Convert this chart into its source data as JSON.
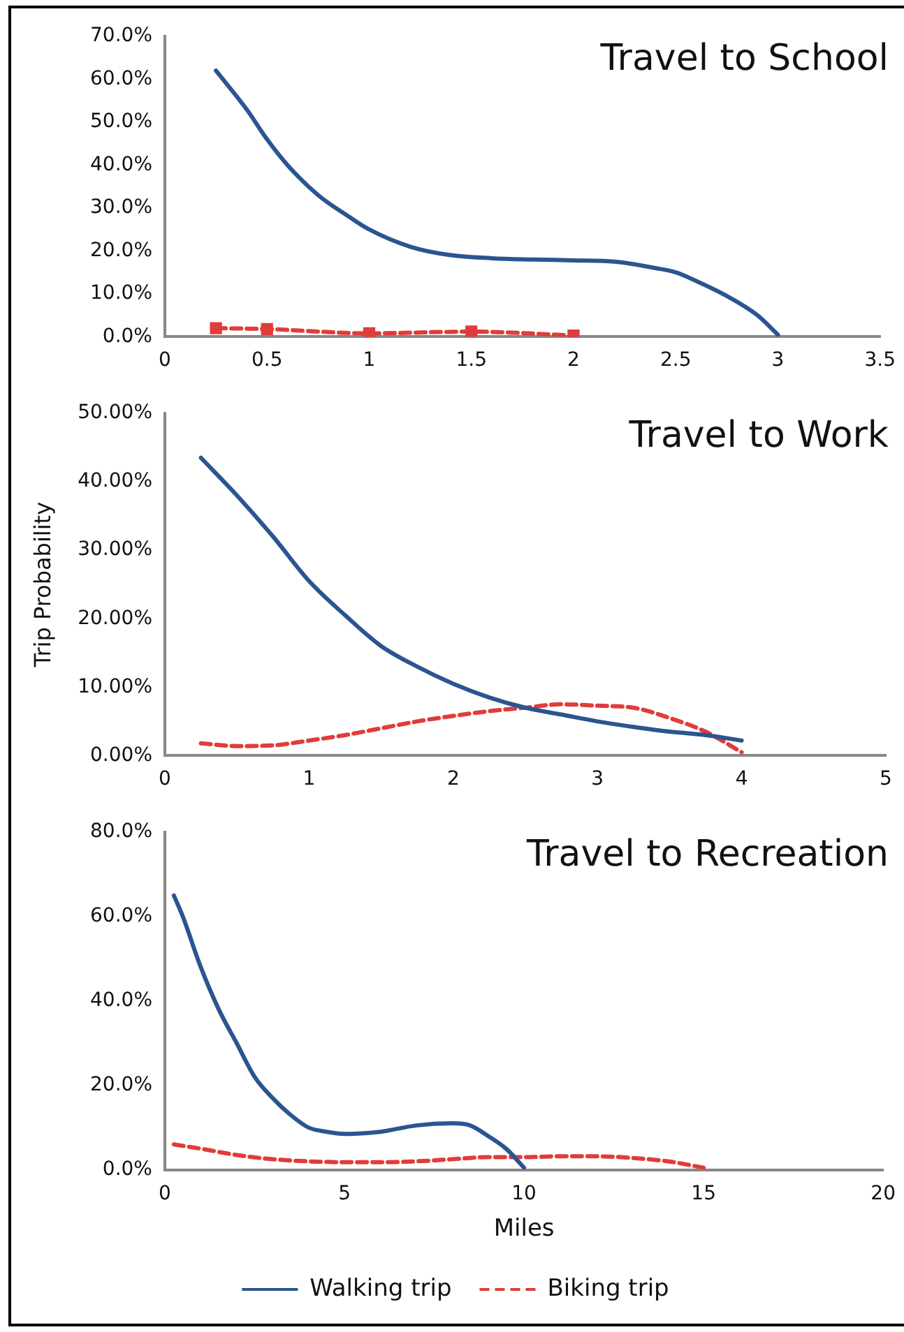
{
  "chart_data": [
    {
      "type": "line",
      "title": "Travel to School",
      "xlim": [
        0,
        3.5
      ],
      "xticks": [
        0,
        0.5,
        1,
        1.5,
        2,
        2.5,
        3,
        3.5
      ],
      "ylim": [
        0,
        70
      ],
      "yticks": [
        {
          "value": 0,
          "label": "0.0%"
        },
        {
          "value": 10,
          "label": "10.0%"
        },
        {
          "value": 20,
          "label": "20.0%"
        },
        {
          "value": 30,
          "label": "30.0%"
        },
        {
          "value": 40,
          "label": "40.0%"
        },
        {
          "value": 50,
          "label": "50.0%"
        },
        {
          "value": 60,
          "label": "60.0%"
        },
        {
          "value": 70,
          "label": "70.0%"
        }
      ],
      "grid": false,
      "legend": false,
      "marker": "none",
      "series": [
        {
          "color": "#2a5590",
          "line_style": "solid",
          "x": [
            0.25,
            0.4,
            0.5,
            0.6,
            0.75,
            0.9,
            1,
            1.2,
            1.4,
            1.6,
            1.8,
            2,
            2.2,
            2.4,
            2.5,
            2.6,
            2.75,
            2.9,
            3
          ],
          "values": [
            62,
            53,
            46,
            40,
            33,
            28,
            25,
            21,
            19,
            18.3,
            18,
            17.8,
            17.5,
            16,
            15,
            13,
            9.5,
            5,
            0.5
          ]
        },
        {
          "color": "#e03c3c",
          "line_style": "dashed",
          "marker": "square",
          "x": [
            0.25,
            0.5,
            1,
            1.5,
            2
          ],
          "values": [
            2,
            1.8,
            0.8,
            1.2,
            0.3
          ]
        }
      ]
    },
    {
      "type": "line",
      "title": "Travel to Work",
      "ylabel": "Trip Probability",
      "xlim": [
        0,
        5
      ],
      "xticks": [
        0,
        1,
        2,
        3,
        4,
        5
      ],
      "ylim": [
        0,
        50
      ],
      "yticks": [
        {
          "value": 0,
          "label": "0.00%"
        },
        {
          "value": 10,
          "label": "10.00%"
        },
        {
          "value": 20,
          "label": "20.00%"
        },
        {
          "value": 30,
          "label": "30.00%"
        },
        {
          "value": 40,
          "label": "40.00%"
        },
        {
          "value": 50,
          "label": "50.00%"
        }
      ],
      "grid": false,
      "legend": false,
      "marker": "none",
      "series": [
        {
          "color": "#2a5590",
          "line_style": "solid",
          "x": [
            0.25,
            0.5,
            0.75,
            1,
            1.25,
            1.5,
            1.75,
            2,
            2.25,
            2.5,
            2.75,
            3,
            3.25,
            3.5,
            3.75,
            4
          ],
          "values": [
            43.5,
            38,
            32,
            25.5,
            20.5,
            16,
            13,
            10.5,
            8.5,
            7,
            6,
            5,
            4.2,
            3.5,
            3,
            2.2
          ]
        },
        {
          "color": "#e03c3c",
          "line_style": "dashed",
          "x": [
            0.25,
            0.5,
            0.75,
            1,
            1.25,
            1.5,
            1.75,
            2,
            2.25,
            2.5,
            2.75,
            3,
            3.25,
            3.5,
            3.75,
            4
          ],
          "values": [
            1.8,
            1.4,
            1.5,
            2.2,
            3,
            4,
            5,
            5.8,
            6.5,
            7,
            7.5,
            7.3,
            7,
            5.5,
            3.5,
            0.5
          ]
        }
      ]
    },
    {
      "type": "line",
      "title": "Travel to Recreation",
      "xlabel": "Miles",
      "xlim": [
        0,
        20
      ],
      "xticks": [
        0,
        5,
        10,
        15,
        20
      ],
      "ylim": [
        0,
        80
      ],
      "yticks": [
        {
          "value": 0,
          "label": "0.0%"
        },
        {
          "value": 20,
          "label": "20.0%"
        },
        {
          "value": 40,
          "label": "40.0%"
        },
        {
          "value": 60,
          "label": "60.0%"
        },
        {
          "value": 80,
          "label": "80.0%"
        }
      ],
      "grid": false,
      "legend": "bottom",
      "marker": "none",
      "series": [
        {
          "name": "Walking trip",
          "color": "#2a5590",
          "line_style": "solid",
          "x": [
            0.25,
            0.5,
            1,
            1.5,
            2,
            2.5,
            3,
            3.5,
            4,
            4.5,
            5,
            6,
            7,
            8,
            8.5,
            9,
            9.5,
            10
          ],
          "values": [
            65,
            60,
            48,
            38,
            30,
            22,
            17,
            13,
            10,
            9,
            8.5,
            9,
            10.5,
            11,
            10.5,
            8,
            5,
            0.5
          ]
        },
        {
          "name": "Biking trip",
          "color": "#e03c3c",
          "line_style": "dashed",
          "x": [
            0.25,
            1,
            2,
            3,
            4,
            5,
            6,
            7,
            8,
            9,
            10,
            11,
            12,
            13,
            14,
            15
          ],
          "values": [
            6,
            5,
            3.5,
            2.5,
            2,
            1.8,
            1.8,
            2,
            2.5,
            3,
            3,
            3.2,
            3.2,
            2.8,
            2,
            0.5
          ]
        }
      ]
    }
  ]
}
